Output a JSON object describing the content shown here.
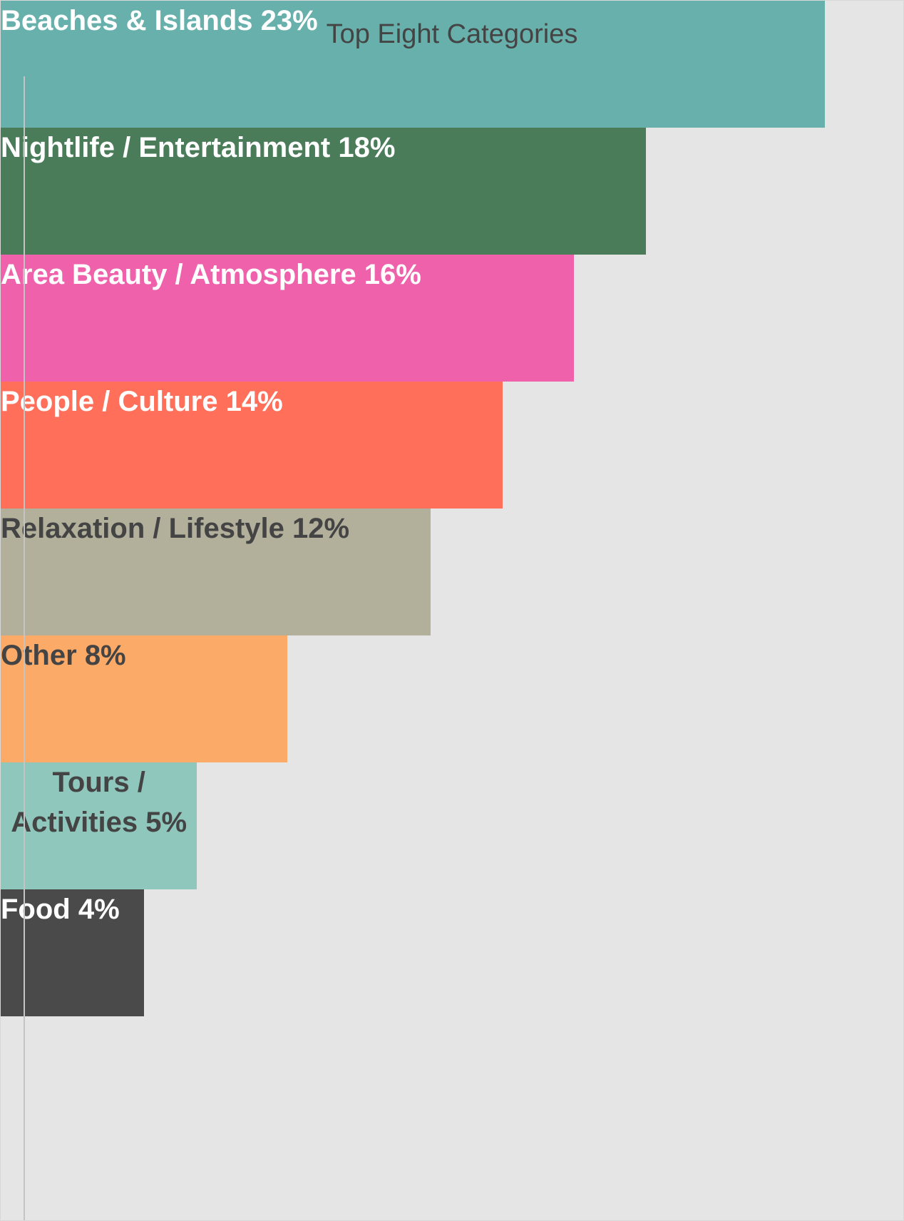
{
  "chart_data": {
    "type": "bar",
    "orientation": "horizontal",
    "title": "Top Eight Categories",
    "categories": [
      "Beaches & Islands",
      "Nightlife / Entertainment",
      "Area Beauty / Atmosphere",
      "People / Culture",
      "Relaxation / Lifestyle",
      "Other",
      "Tours / Activities",
      "Food"
    ],
    "values": [
      23,
      18,
      16,
      14,
      12,
      8,
      5,
      4
    ],
    "value_labels": [
      "23%",
      "18%",
      "16%",
      "14%",
      "12%",
      "8%",
      "5%",
      "4%"
    ],
    "colors": [
      "#68b0ab",
      "#4a7c59",
      "#ef62ab",
      "#ff6f59",
      "#b2b09b",
      "#fcaa67",
      "#8fc7bd",
      "#4a4a4a"
    ],
    "label_colors": [
      "#ffffff",
      "#ffffff",
      "#ffffff",
      "#ffffff",
      "#444444",
      "#444444",
      "#444444",
      "#ffffff"
    ]
  }
}
